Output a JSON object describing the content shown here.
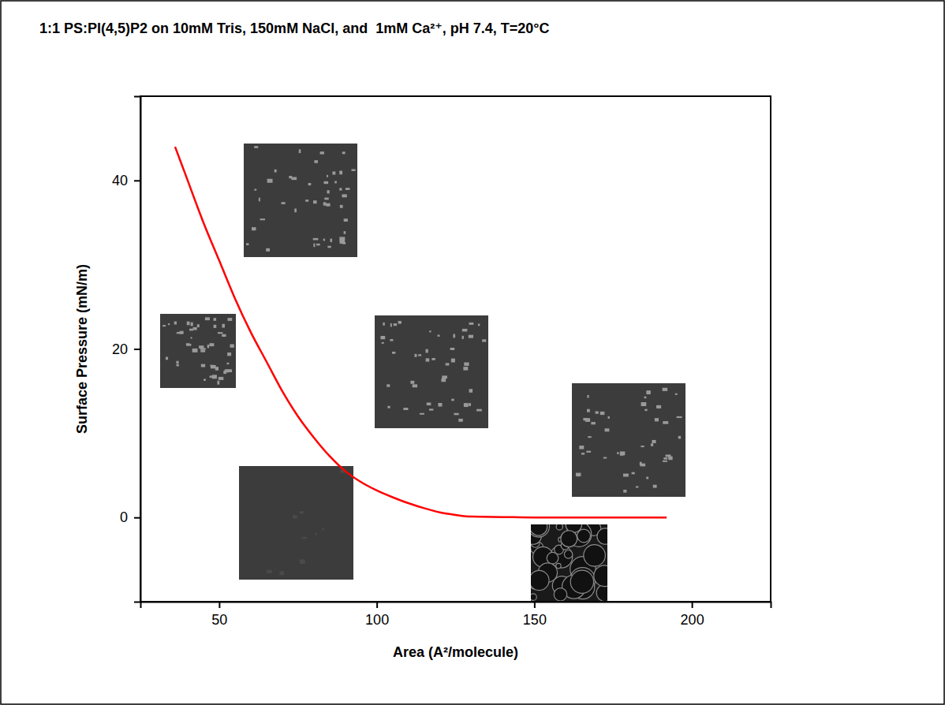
{
  "chart_data": {
    "type": "line",
    "title": "1:1 PS:PI(4,5)P2 on 10mM Tris, 150mM NaCl, and  1mM Ca²⁺, pH 7.4, T=20°C",
    "x_label": "Area (A²/molecule)",
    "y_label": "Surface Pressure (mN/m)",
    "x": [
      36,
      38,
      40,
      45,
      50,
      55,
      60,
      65,
      70,
      75,
      80,
      85,
      90,
      95,
      100,
      105,
      110,
      115,
      120,
      125,
      130,
      140,
      150,
      160,
      170,
      180,
      192
    ],
    "values": [
      44,
      42,
      40,
      35,
      30.5,
      26,
      22,
      18.5,
      15,
      12,
      9.5,
      7.3,
      5.5,
      4.2,
      3.2,
      2.4,
      1.7,
      1.1,
      0.6,
      0.3,
      0.1,
      0.05,
      0,
      0,
      0,
      0,
      0
    ],
    "color": "#ff0000",
    "xlim": [
      25,
      225
    ],
    "xticks": [
      50,
      100,
      150,
      200
    ],
    "ylim": [
      -10,
      50
    ],
    "yticks": [
      0,
      20,
      40
    ]
  }
}
